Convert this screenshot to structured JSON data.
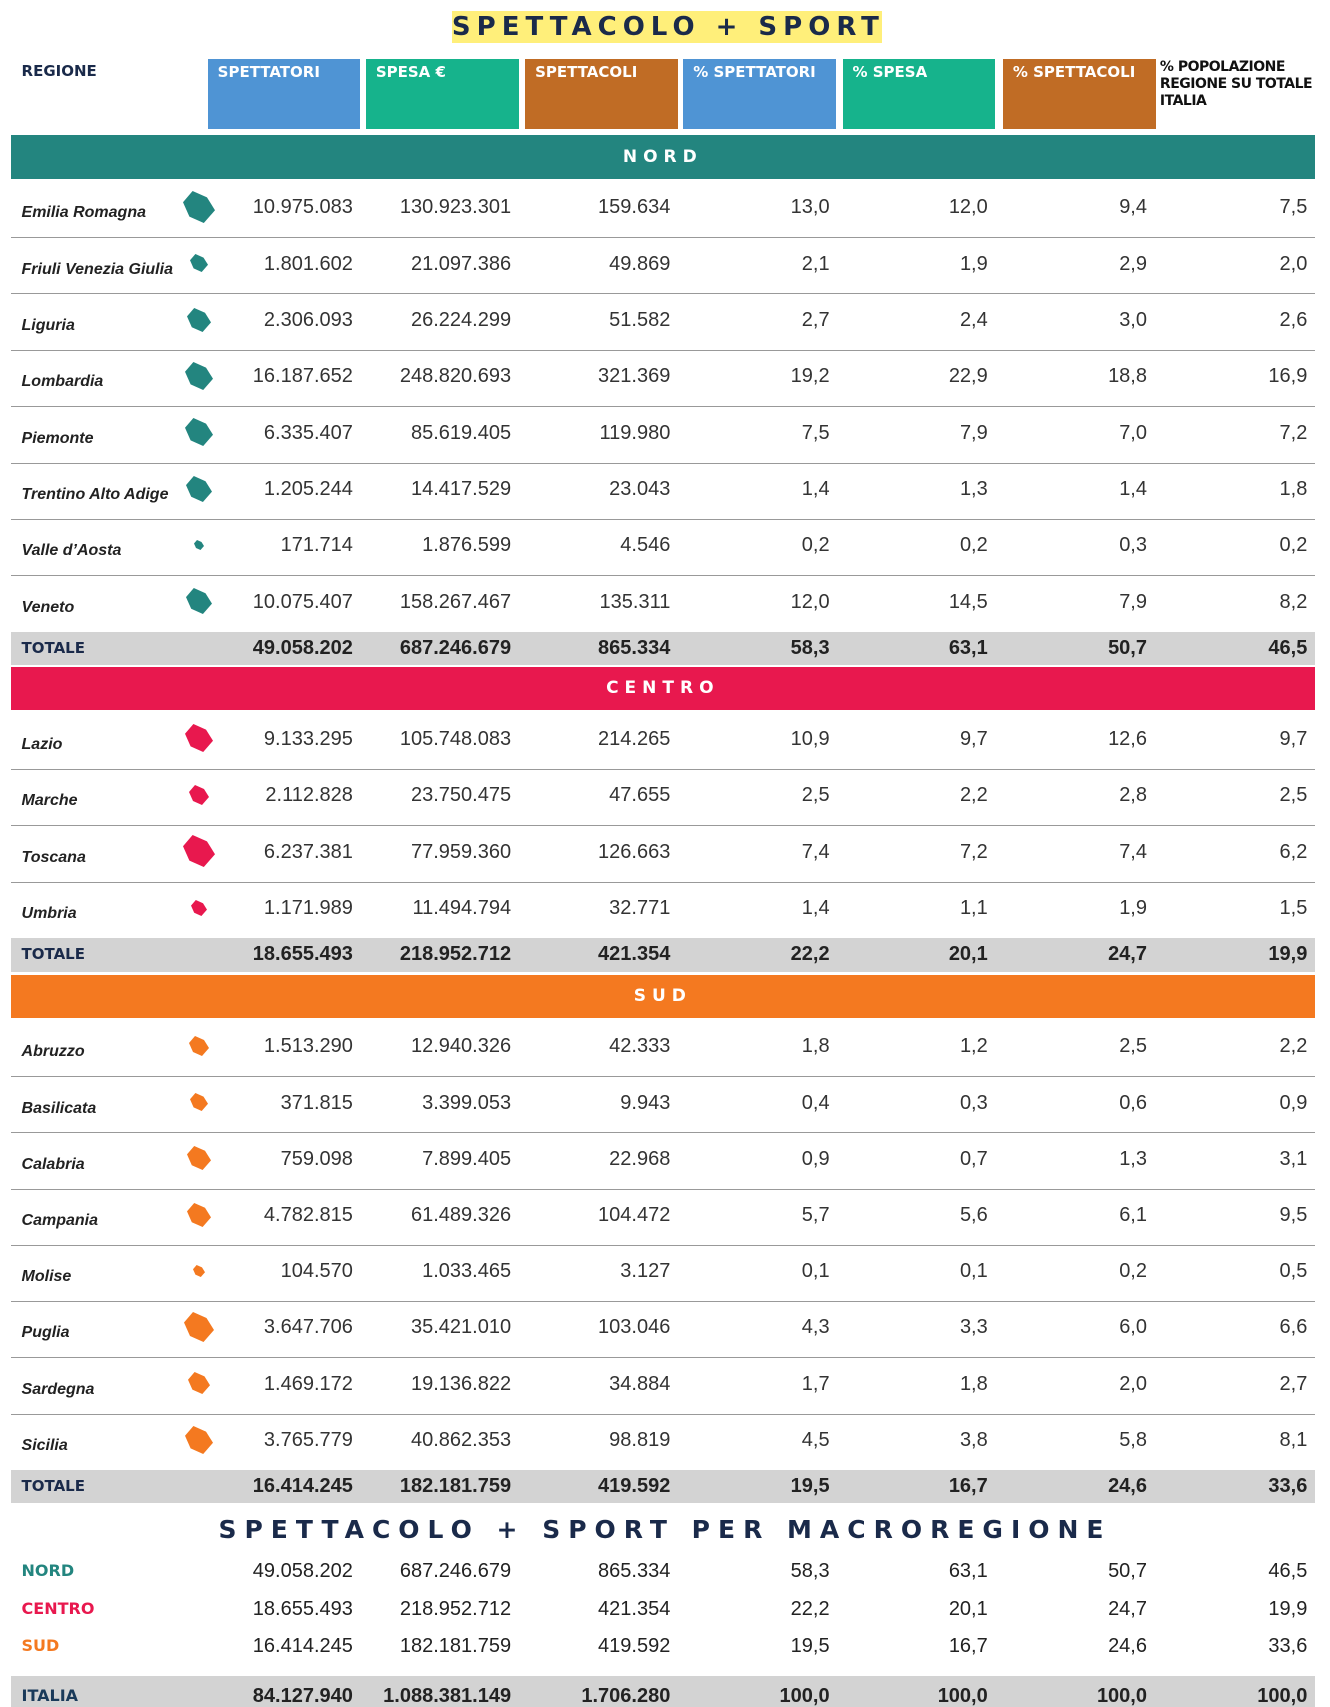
{
  "title": "SPETTACOLO + SPORT",
  "table": {
    "columns": [
      "REGIONE",
      "SPETTATORI",
      "SPESA €",
      "SPETTACOLI",
      "% SPETTATORI",
      "% SPESA",
      "% SPETTACOLI",
      "% POPOLAZIONE REGIONE SU TOTALE ITALIA"
    ]
  },
  "sections": [
    {
      "name": "NORD",
      "rows": [
        [
          "Emilia Romagna",
          "10.975.083",
          "130.923.301",
          "159.634",
          "13,0",
          "12,0",
          "9,4",
          "7,5"
        ],
        [
          "Friuli Venezia Giulia",
          "1.801.602",
          "21.097.386",
          "49.869",
          "2,1",
          "1,9",
          "2,9",
          "2,0"
        ],
        [
          "Liguria",
          "2.306.093",
          "26.224.299",
          "51.582",
          "2,7",
          "2,4",
          "3,0",
          "2,6"
        ],
        [
          "Lombardia",
          "16.187.652",
          "248.820.693",
          "321.369",
          "19,2",
          "22,9",
          "18,8",
          "16,9"
        ],
        [
          "Piemonte",
          "6.335.407",
          "85.619.405",
          "119.980",
          "7,5",
          "7,9",
          "7,0",
          "7,2"
        ],
        [
          "Trentino Alto Adige",
          "1.205.244",
          "14.417.529",
          "23.043",
          "1,4",
          "1,3",
          "1,4",
          "1,8"
        ],
        [
          "Valle d’Aosta",
          "171.714",
          "1.876.599",
          "4.546",
          "0,2",
          "0,2",
          "0,3",
          "0,2"
        ],
        [
          "Veneto",
          "10.075.407",
          "158.267.467",
          "135.311",
          "12,0",
          "14,5",
          "7,9",
          "8,2"
        ]
      ],
      "total": [
        "TOTALE",
        "49.058.202",
        "687.246.679",
        "865.334",
        "58,3",
        "63,1",
        "50,7",
        "46,5"
      ]
    },
    {
      "name": "CENTRO",
      "rows": [
        [
          "Lazio",
          "9.133.295",
          "105.748.083",
          "214.265",
          "10,9",
          "9,7",
          "12,6",
          "9,7"
        ],
        [
          "Marche",
          "2.112.828",
          "23.750.475",
          "47.655",
          "2,5",
          "2,2",
          "2,8",
          "2,5"
        ],
        [
          "Toscana",
          "6.237.381",
          "77.959.360",
          "126.663",
          "7,4",
          "7,2",
          "7,4",
          "6,2"
        ],
        [
          "Umbria",
          "1.171.989",
          "11.494.794",
          "32.771",
          "1,4",
          "1,1",
          "1,9",
          "1,5"
        ]
      ],
      "total": [
        "TOTALE",
        "18.655.493",
        "218.952.712",
        "421.354",
        "22,2",
        "20,1",
        "24,7",
        "19,9"
      ]
    },
    {
      "name": "SUD",
      "rows": [
        [
          "Abruzzo",
          "1.513.290",
          "12.940.326",
          "42.333",
          "1,8",
          "1,2",
          "2,5",
          "2,2"
        ],
        [
          "Basilicata",
          "371.815",
          "3.399.053",
          "9.943",
          "0,4",
          "0,3",
          "0,6",
          "0,9"
        ],
        [
          "Calabria",
          "759.098",
          "7.899.405",
          "22.968",
          "0,9",
          "0,7",
          "1,3",
          "3,1"
        ],
        [
          "Campania",
          "4.782.815",
          "61.489.326",
          "104.472",
          "5,7",
          "5,6",
          "6,1",
          "9,5"
        ],
        [
          "Molise",
          "104.570",
          "1.033.465",
          "3.127",
          "0,1",
          "0,1",
          "0,2",
          "0,5"
        ],
        [
          "Puglia",
          "3.647.706",
          "35.421.010",
          "103.046",
          "4,3",
          "3,3",
          "6,0",
          "6,6"
        ],
        [
          "Sardegna",
          "1.469.172",
          "19.136.822",
          "34.884",
          "1,7",
          "1,8",
          "2,0",
          "2,7"
        ],
        [
          "Sicilia",
          "3.765.779",
          "40.862.353",
          "98.819",
          "4,5",
          "3,8",
          "5,8",
          "8,1"
        ]
      ],
      "total": [
        "TOTALE",
        "16.414.245",
        "182.181.759",
        "419.592",
        "19,5",
        "16,7",
        "24,6",
        "33,6"
      ]
    }
  ],
  "summary": {
    "title": "SPETTACOLO + SPORT PER MACROREGIONE",
    "rows": [
      [
        "NORD",
        "49.058.202",
        "687.246.679",
        "865.334",
        "58,3",
        "63,1",
        "50,7",
        "46,5"
      ],
      [
        "CENTRO",
        "18.655.493",
        "218.952.712",
        "421.354",
        "22,2",
        "20,1",
        "24,7",
        "19,9"
      ],
      [
        "SUD",
        "16.414.245",
        "182.181.759",
        "419.592",
        "19,5",
        "16,7",
        "24,6",
        "33,6"
      ],
      [
        "ITALIA",
        "84.127.940",
        "1.088.381.149",
        "1.706.280",
        "100,0",
        "100,0",
        "100,0",
        "100,0"
      ]
    ]
  }
}
